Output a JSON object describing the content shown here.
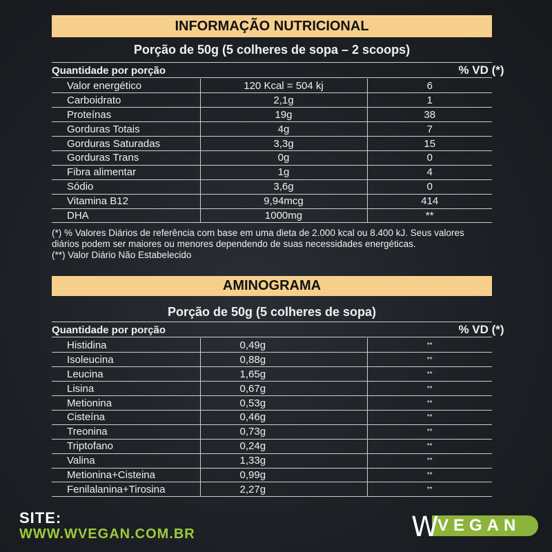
{
  "nutrition": {
    "title": "INFORMAÇÃO NUTRICIONAL",
    "portion": "Porção de 50g (5 colheres de sopa – 2 scoops)",
    "col_qty": "Quantidade por porção",
    "col_vd": "% VD (*)",
    "rows": [
      [
        "Valor energético",
        "120 Kcal = 504 kj",
        "6"
      ],
      [
        "Carboidrato",
        "2,1g",
        "1"
      ],
      [
        "Proteínas",
        "19g",
        "38"
      ],
      [
        "Gorduras Totais",
        "4g",
        "7"
      ],
      [
        "Gorduras Saturadas",
        "3,3g",
        "15"
      ],
      [
        "Gorduras Trans",
        "0g",
        "0"
      ],
      [
        "Fibra alimentar",
        "1g",
        "4"
      ],
      [
        "Sódio",
        "3,6g",
        "0"
      ],
      [
        "Vitamina B12",
        "9,94mcg",
        "414"
      ],
      [
        "DHA",
        "1000mg",
        "**"
      ]
    ],
    "notes": [
      "(*) % Valores Diários de referência com base em uma dieta de 2.000 kcal ou 8.400 kJ. Seus valores diários podem ser maiores ou menores dependendo de suas necessidades energéticas.",
      "(**) Valor Diário Não Estabelecido"
    ]
  },
  "amino": {
    "title": "AMINOGRAMA",
    "portion": "Porção de 50g (5 colheres de sopa)",
    "col_qty": "Quantidade por porção",
    "col_vd": "% VD (*)",
    "rows": [
      [
        "Histidina",
        "0,49g",
        "**"
      ],
      [
        "Isoleucina",
        "0,88g",
        "**"
      ],
      [
        "Leucina",
        "1,65g",
        "**"
      ],
      [
        "Lisina",
        "0,67g",
        "**"
      ],
      [
        "Metionina",
        "0,53g",
        "**"
      ],
      [
        "Cisteína",
        "0,46g",
        "**"
      ],
      [
        "Treonina",
        "0,73g",
        "**"
      ],
      [
        "Triptofano",
        "0,24g",
        "**"
      ],
      [
        "Valina",
        "1,33g",
        "**"
      ],
      [
        "Metionina+Cisteina",
        "0,99g",
        "**"
      ],
      [
        "Fenilalanina+Tirosina",
        "2,27g",
        "**"
      ]
    ]
  },
  "footer": {
    "site_label": "SITE:",
    "url": "WWW.WVEGAN.COM.BR",
    "logo": "WVEGAN",
    "logo_w": "W",
    "logo_rest": "VEGAN"
  },
  "colors": {
    "banner": "#f7cf8d",
    "accent": "#9ccb3b",
    "logo_green": "#8cb43a"
  }
}
